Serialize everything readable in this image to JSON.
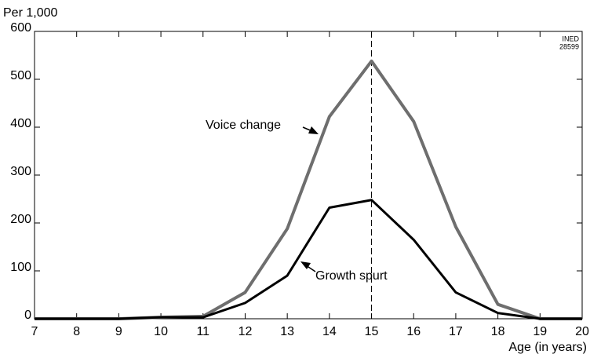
{
  "chart_data": {
    "type": "line",
    "y_axis_label": "Per 1,000",
    "x_axis_label": "Age (in years)",
    "source_note": [
      "INED",
      "28599"
    ],
    "x": [
      7,
      8,
      9,
      10,
      11,
      12,
      13,
      14,
      15,
      16,
      17,
      18,
      19,
      20
    ],
    "series": [
      {
        "name": "Voice change",
        "color": "#6e6e6e",
        "values": [
          0,
          0,
          0,
          3,
          5,
          55,
          188,
          422,
          538,
          412,
          192,
          30,
          0,
          0
        ]
      },
      {
        "name": "Growth spurt",
        "color": "#000000",
        "values": [
          0,
          0,
          0,
          3,
          3,
          33,
          90,
          232,
          248,
          165,
          55,
          12,
          0,
          0
        ]
      }
    ],
    "reference_x": 15,
    "xlim": [
      7,
      20
    ],
    "xticks": [
      7,
      8,
      9,
      10,
      11,
      12,
      13,
      14,
      15,
      16,
      17,
      18,
      19,
      20
    ],
    "ylim": [
      0,
      600
    ],
    "yticks": [
      0,
      100,
      200,
      300,
      400,
      500,
      600
    ]
  }
}
